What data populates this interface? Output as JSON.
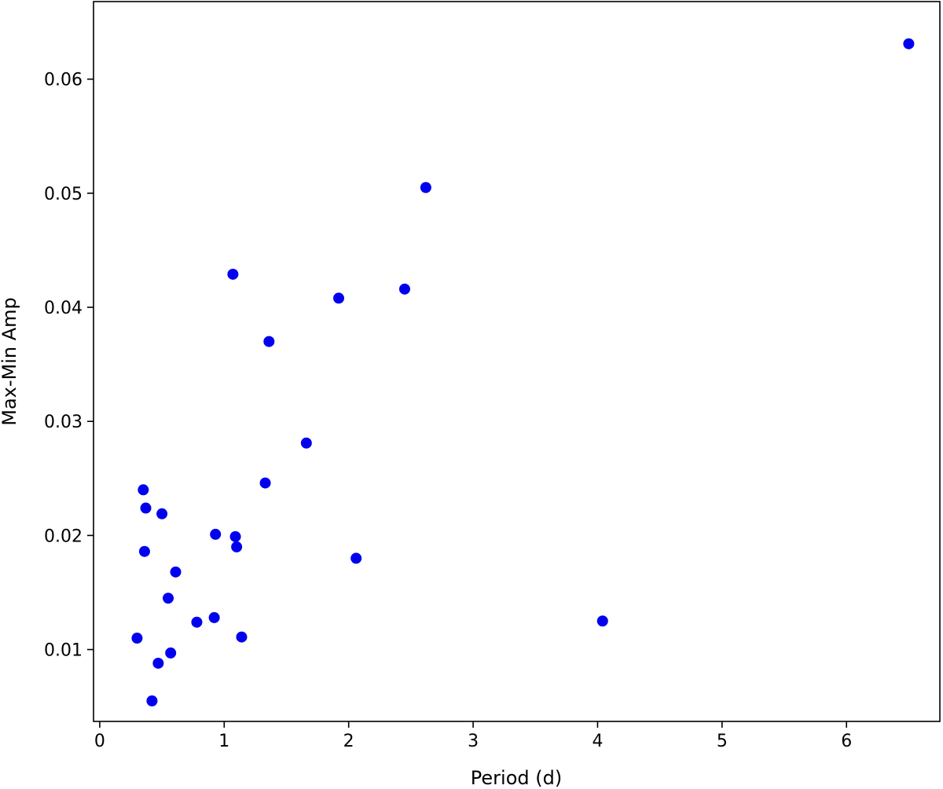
{
  "chart_data": {
    "type": "scatter",
    "title": "",
    "xlabel": "Period (d)",
    "ylabel": "Max-Min Amp",
    "xlim": [
      -0.05,
      6.75
    ],
    "ylim": [
      0.0037,
      0.0668
    ],
    "xticks": [
      0,
      1,
      2,
      3,
      4,
      5,
      6
    ],
    "yticks": [
      0.01,
      0.02,
      0.03,
      0.04,
      0.05,
      0.06
    ],
    "xtick_labels": [
      "0",
      "1",
      "2",
      "3",
      "4",
      "5",
      "6"
    ],
    "ytick_labels": [
      "0.01",
      "0.02",
      "0.03",
      "0.04",
      "0.05",
      "0.06"
    ],
    "grid": false,
    "marker_color": "#0000ee",
    "series": [
      {
        "points": [
          {
            "x": 0.3,
            "y": 0.011
          },
          {
            "x": 0.35,
            "y": 0.024
          },
          {
            "x": 0.36,
            "y": 0.0186
          },
          {
            "x": 0.37,
            "y": 0.0224
          },
          {
            "x": 0.42,
            "y": 0.0055
          },
          {
            "x": 0.47,
            "y": 0.0088
          },
          {
            "x": 0.5,
            "y": 0.0219
          },
          {
            "x": 0.55,
            "y": 0.0145
          },
          {
            "x": 0.57,
            "y": 0.0097
          },
          {
            "x": 0.61,
            "y": 0.0168
          },
          {
            "x": 0.78,
            "y": 0.0124
          },
          {
            "x": 0.92,
            "y": 0.0128
          },
          {
            "x": 0.93,
            "y": 0.0201
          },
          {
            "x": 1.07,
            "y": 0.0429
          },
          {
            "x": 1.09,
            "y": 0.0199
          },
          {
            "x": 1.1,
            "y": 0.019
          },
          {
            "x": 1.14,
            "y": 0.0111
          },
          {
            "x": 1.33,
            "y": 0.0246
          },
          {
            "x": 1.36,
            "y": 0.037
          },
          {
            "x": 1.66,
            "y": 0.0281
          },
          {
            "x": 1.92,
            "y": 0.0408
          },
          {
            "x": 2.06,
            "y": 0.018
          },
          {
            "x": 2.45,
            "y": 0.0416
          },
          {
            "x": 2.62,
            "y": 0.0505
          },
          {
            "x": 4.04,
            "y": 0.0125
          },
          {
            "x": 6.5,
            "y": 0.0631
          }
        ]
      }
    ]
  }
}
